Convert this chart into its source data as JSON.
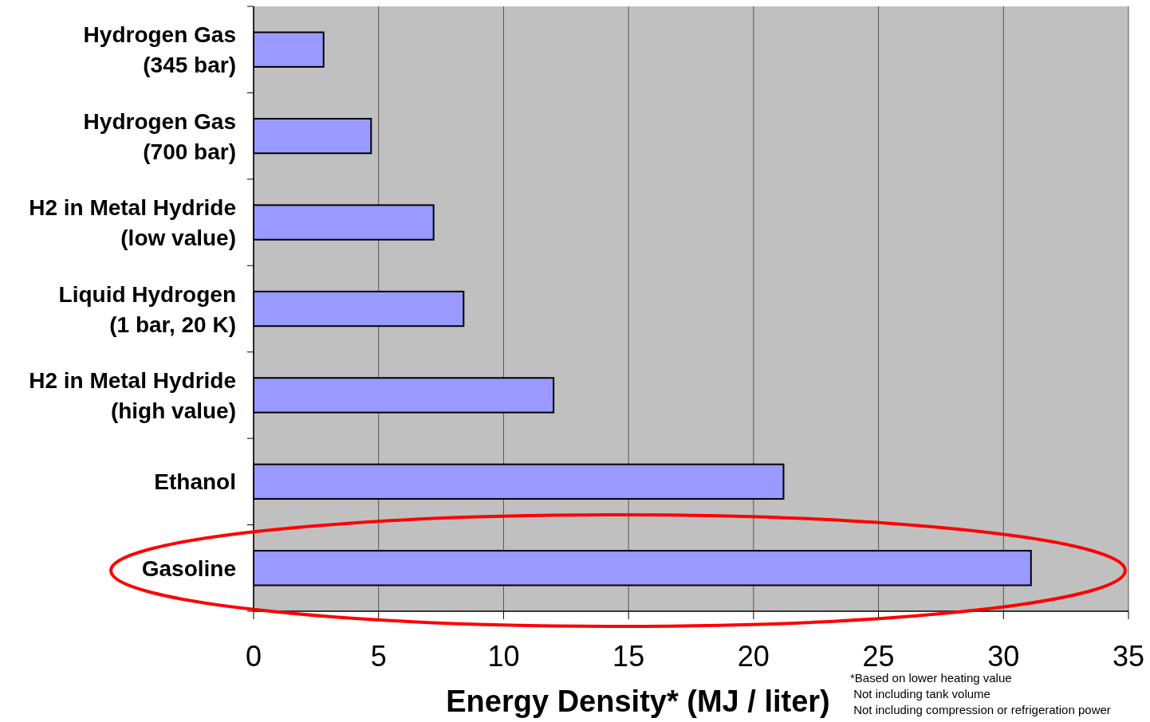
{
  "chart_data": {
    "type": "bar",
    "orientation": "horizontal",
    "categories": [
      "Hydrogen Gas (345 bar)",
      "Hydrogen Gas (700 bar)",
      "H2 in Metal Hydride (low value)",
      "Liquid Hydrogen (1 bar, 20 K)",
      "H2 in Metal Hydride (high value)",
      "Ethanol",
      "Gasoline"
    ],
    "values": [
      2.8,
      4.7,
      7.2,
      8.4,
      12.0,
      21.2,
      31.1
    ],
    "color": "#9999ff",
    "xlim": [
      0,
      35
    ],
    "xticks": [
      0,
      5,
      10,
      15,
      20,
      25,
      30,
      35
    ],
    "xlabel": "Energy Density* (MJ / liter)",
    "grid": "x",
    "annotations": [
      "*Based on lower heating value",
      " Not including tank volume",
      " Not including compression or refrigeration power"
    ]
  }
}
